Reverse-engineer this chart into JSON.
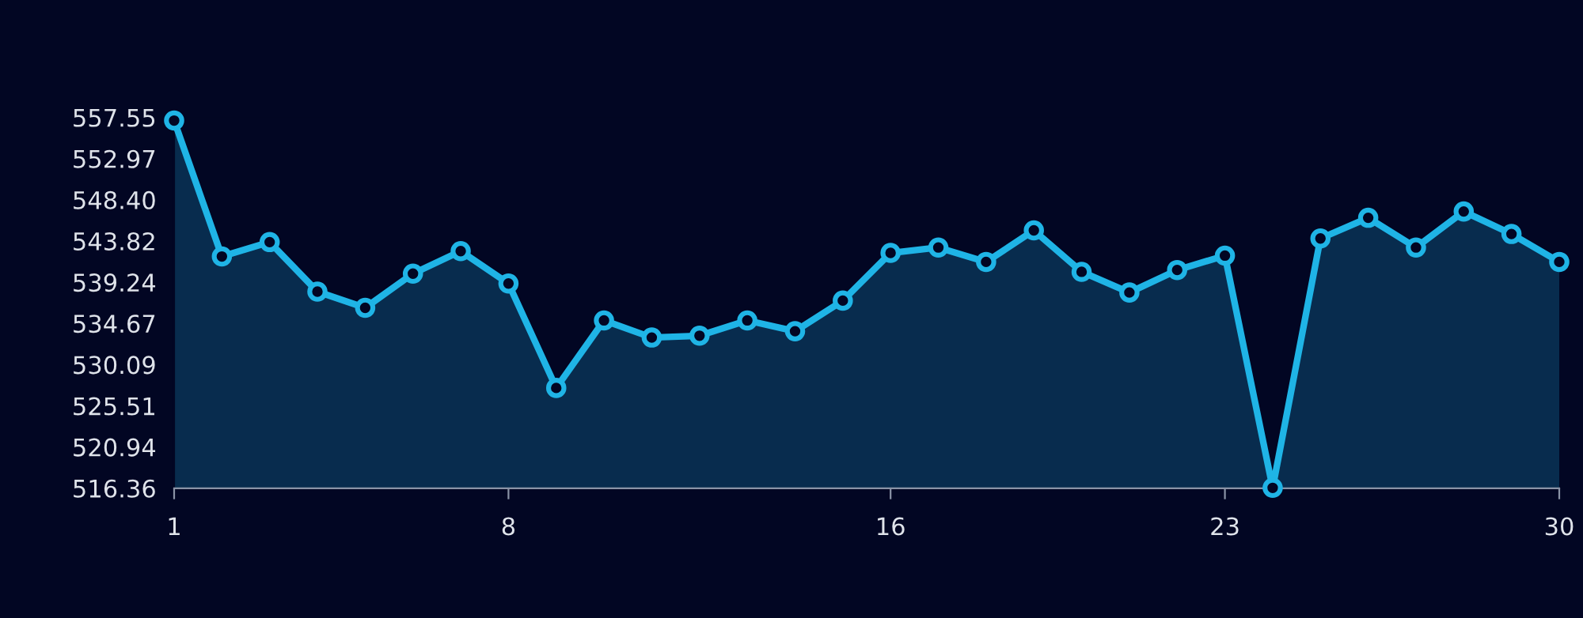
{
  "chart_data": {
    "type": "area",
    "x": [
      1,
      2,
      3,
      4,
      5,
      6,
      7,
      8,
      9,
      10,
      11,
      12,
      13,
      14,
      15,
      16,
      17,
      18,
      19,
      20,
      21,
      22,
      23,
      24,
      25,
      26,
      27,
      28,
      29,
      30
    ],
    "values": [
      557.2,
      542.1,
      543.7,
      538.2,
      536.4,
      540.2,
      542.7,
      539.1,
      527.5,
      535.0,
      533.1,
      533.3,
      535.0,
      533.8,
      537.2,
      542.5,
      543.1,
      541.5,
      545.0,
      540.4,
      538.1,
      540.6,
      542.2,
      516.4,
      544.1,
      546.4,
      543.1,
      547.1,
      544.6,
      541.5
    ],
    "color": "#1fb4e6",
    "marker": "circle",
    "line_style": "solid",
    "grid": false,
    "xlim": [
      1,
      30
    ],
    "xticks": [
      1,
      8,
      16,
      23,
      30
    ],
    "ylim": [
      516.36,
      557.55
    ],
    "yticks": [
      516.36,
      520.94,
      525.51,
      530.09,
      534.67,
      539.24,
      543.82,
      {
        "value": 548.4,
        "label": "548.40"
      },
      552.97,
      557.55
    ]
  }
}
